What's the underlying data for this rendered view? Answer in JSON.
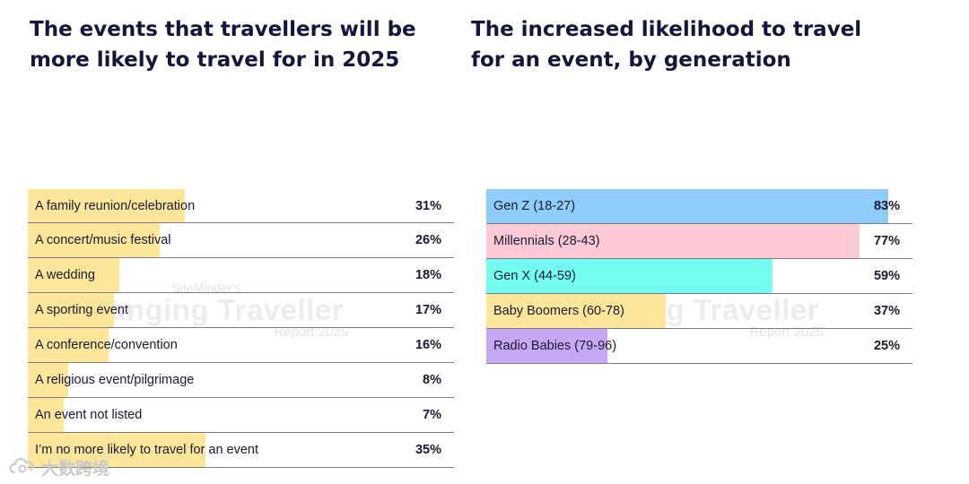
{
  "charts": [
    {
      "title": "The events that travellers will be more likely to travel for in 2025",
      "type": "bar",
      "orientation": "horizontal",
      "bar_color": "#fde69a",
      "scale_max": 100,
      "categories": [
        "A family reunion/celebration",
        "A concert/music festival",
        "A wedding",
        "A sporting event",
        "A conference/convention",
        "A religious event/pilgrimage",
        "An event not listed",
        "I’m no more likely to travel for an event"
      ],
      "values": [
        31,
        26,
        18,
        17,
        16,
        8,
        7,
        35
      ],
      "value_labels": [
        "31%",
        "26%",
        "18%",
        "17%",
        "16%",
        "8%",
        "7%",
        "35%"
      ]
    },
    {
      "title": "The increased likelihood to travel for an event, by generation",
      "type": "bar",
      "orientation": "horizontal",
      "scale_max": 100,
      "categories": [
        "Gen Z (18-27)",
        "Millennials (28-43)",
        "Gen X (44-59)",
        "Baby Boomers (60-78)",
        "Radio Babies (79-96)"
      ],
      "values": [
        83,
        77,
        59,
        37,
        25
      ],
      "value_labels": [
        "83%",
        "77%",
        "59%",
        "37%",
        "25%"
      ],
      "colors": [
        "#8ecdf9",
        "#fdc9d7",
        "#72fdf0",
        "#fde69a",
        "#c6a8f7"
      ]
    }
  ],
  "watermark": {
    "line1": "SiteMinder’s",
    "line2": "Changing Traveller",
    "line3": "Report 2025"
  },
  "corner_logo": {
    "text": "大数跨境",
    "icon": "cloud-swirl-icon"
  }
}
